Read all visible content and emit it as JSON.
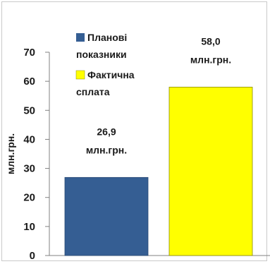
{
  "chart_data": {
    "type": "bar",
    "ylabel": "млн.грн.",
    "ylim": [
      0,
      70
    ],
    "yticks": [
      "0",
      "10",
      "20",
      "30",
      "40",
      "50",
      "60",
      "70"
    ],
    "grid": false,
    "legend_position": "top-left",
    "series": [
      {
        "name": "Планові показники",
        "value": 26.9,
        "label_value": "26,9",
        "label_unit": "млн.грн.",
        "color": "#355E93"
      },
      {
        "name": "Фактична сплата",
        "value": 58.0,
        "label_value": "58,0",
        "label_unit": "млн.грн.",
        "color": "#FFFF00"
      }
    ],
    "legend": [
      {
        "line1": "Планові",
        "line2": "показники",
        "color": "#355E93"
      },
      {
        "line1": "Фактична",
        "line2": "сплата",
        "color": "#FFFF00"
      }
    ]
  }
}
